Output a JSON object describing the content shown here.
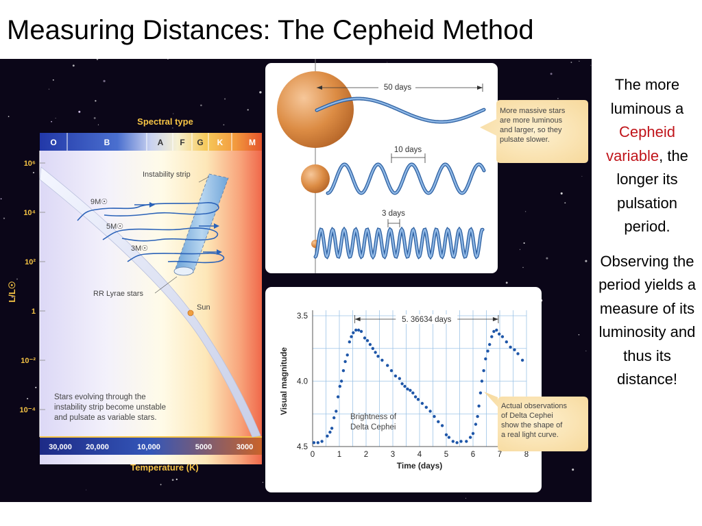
{
  "slide": {
    "title": "Measuring Distances: The Cepheid Method"
  },
  "sidebar": {
    "p1_before": "The more luminous a ",
    "p1_highlight": "Cepheid variable",
    "p1_after": ", the longer its pulsation period.",
    "p2": "Observing the period yields a measure of its luminosity and thus its distance!"
  },
  "hr": {
    "spectral_title": "Spectral type",
    "spectral_types": [
      "O",
      "B",
      "A",
      "F",
      "G",
      "K",
      "M"
    ],
    "y_axis_label": "L/L☉",
    "y_ticks": [
      "10⁶",
      "10⁴",
      "10²",
      "1",
      "10⁻²",
      "10⁻⁴"
    ],
    "x_ticks": [
      "30,000",
      "20,000",
      "10,000",
      "5000",
      "3000"
    ],
    "x_axis_label": "Temperature (K)",
    "instability_label": "Instability strip",
    "rr_label": "RR Lyrae stars",
    "sun_label": "Sun",
    "tracks": [
      "9M☉",
      "5M☉",
      "3M☉"
    ],
    "note_lines": [
      "Stars evolving through the",
      "instability strip become unstable",
      "and pulsate as variable stars."
    ]
  },
  "pulsation": {
    "periods": [
      "50 days",
      "10 days",
      "3 days"
    ],
    "callout_lines": [
      "More massive stars",
      "are more luminous",
      "and larger, so they",
      "pulsate slower."
    ],
    "colors": {
      "star": "#d88a3c",
      "wave": "#4f86c6"
    }
  },
  "light_curve": {
    "period_label": "5. 36634 days",
    "curve_label_lines": [
      "Brightness of",
      "Delta Cephei"
    ],
    "callout_lines": [
      "Actual observations",
      "of Delta Cephei",
      "show the shape of",
      "a real light curve."
    ]
  },
  "chart_data": {
    "type": "scatter",
    "title": "",
    "xlabel": "Time (days)",
    "ylabel": "Visual magnitude",
    "xlim": [
      0,
      8
    ],
    "ylim": [
      4.5,
      3.5
    ],
    "y_inverted": true,
    "x_ticks": [
      0,
      1,
      2,
      3,
      4,
      5,
      6,
      7,
      8
    ],
    "y_ticks": [
      3.5,
      4.0,
      4.5
    ],
    "y_tick_labels": [
      "3.5",
      "4.0",
      "4.5"
    ],
    "grid": true,
    "points": [
      [
        0.05,
        4.47
      ],
      [
        0.2,
        4.47
      ],
      [
        0.35,
        4.46
      ],
      [
        0.55,
        4.42
      ],
      [
        0.65,
        4.39
      ],
      [
        0.72,
        4.36
      ],
      [
        0.8,
        4.28
      ],
      [
        0.88,
        4.23
      ],
      [
        0.95,
        4.12
      ],
      [
        1.02,
        4.04
      ],
      [
        1.08,
        4.0
      ],
      [
        1.15,
        3.92
      ],
      [
        1.22,
        3.85
      ],
      [
        1.3,
        3.8
      ],
      [
        1.38,
        3.7
      ],
      [
        1.45,
        3.66
      ],
      [
        1.52,
        3.63
      ],
      [
        1.62,
        3.61
      ],
      [
        1.72,
        3.61
      ],
      [
        1.82,
        3.62
      ],
      [
        1.95,
        3.67
      ],
      [
        2.05,
        3.69
      ],
      [
        2.15,
        3.72
      ],
      [
        2.25,
        3.75
      ],
      [
        2.35,
        3.78
      ],
      [
        2.45,
        3.81
      ],
      [
        2.6,
        3.84
      ],
      [
        2.8,
        3.88
      ],
      [
        2.95,
        3.92
      ],
      [
        3.1,
        3.96
      ],
      [
        3.25,
        3.98
      ],
      [
        3.35,
        4.02
      ],
      [
        3.45,
        4.04
      ],
      [
        3.55,
        4.06
      ],
      [
        3.65,
        4.07
      ],
      [
        3.75,
        4.09
      ],
      [
        3.85,
        4.12
      ],
      [
        3.95,
        4.14
      ],
      [
        4.1,
        4.17
      ],
      [
        4.25,
        4.2
      ],
      [
        4.4,
        4.23
      ],
      [
        4.55,
        4.27
      ],
      [
        4.7,
        4.31
      ],
      [
        4.85,
        4.34
      ],
      [
        5.0,
        4.41
      ],
      [
        5.1,
        4.43
      ],
      [
        5.25,
        4.46
      ],
      [
        5.4,
        4.47
      ],
      [
        5.55,
        4.46
      ],
      [
        5.75,
        4.46
      ],
      [
        5.9,
        4.43
      ],
      [
        6.0,
        4.4
      ],
      [
        6.1,
        4.33
      ],
      [
        6.17,
        4.27
      ],
      [
        6.22,
        4.19
      ],
      [
        6.28,
        4.09
      ],
      [
        6.33,
        4.0
      ],
      [
        6.4,
        3.92
      ],
      [
        6.47,
        3.83
      ],
      [
        6.55,
        3.77
      ],
      [
        6.62,
        3.72
      ],
      [
        6.7,
        3.66
      ],
      [
        6.78,
        3.62
      ],
      [
        6.88,
        3.61
      ],
      [
        6.98,
        3.64
      ],
      [
        7.1,
        3.66
      ],
      [
        7.25,
        3.7
      ],
      [
        7.4,
        3.74
      ],
      [
        7.55,
        3.76
      ],
      [
        7.68,
        3.79
      ],
      [
        7.85,
        3.84
      ]
    ],
    "period_days": 5.36634
  }
}
